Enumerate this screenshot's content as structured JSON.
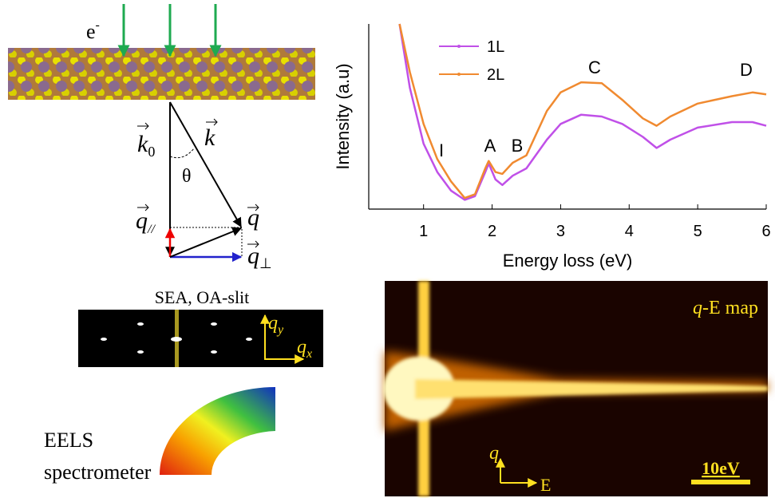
{
  "chart_data": {
    "type": "line",
    "xlabel": "Energy loss (eV)",
    "ylabel": "Intensity (a.u)",
    "x": [
      0.65,
      0.8,
      1.0,
      1.2,
      1.4,
      1.6,
      1.75,
      1.9,
      1.95,
      2.05,
      2.15,
      2.3,
      2.5,
      2.8,
      3.0,
      3.3,
      3.6,
      3.9,
      4.2,
      4.4,
      4.6,
      5.0,
      5.5,
      5.8,
      6.0
    ],
    "series": [
      {
        "name": "1L",
        "color": "#c050e8",
        "values": [
          1.0,
          0.655,
          0.353,
          0.2,
          0.1,
          0.05,
          0.07,
          0.2,
          0.246,
          0.16,
          0.13,
          0.18,
          0.22,
          0.375,
          0.46,
          0.51,
          0.5,
          0.46,
          0.39,
          0.33,
          0.375,
          0.44,
          0.47,
          0.47,
          0.45
        ]
      },
      {
        "name": "2L",
        "color": "#f08a30",
        "values": [
          1.0,
          0.74,
          0.46,
          0.27,
          0.15,
          0.06,
          0.08,
          0.22,
          0.26,
          0.2,
          0.19,
          0.25,
          0.29,
          0.53,
          0.63,
          0.685,
          0.68,
          0.59,
          0.49,
          0.45,
          0.5,
          0.57,
          0.61,
          0.63,
          0.62
        ]
      }
    ],
    "xlim": [
      0.2,
      6
    ],
    "xticks": [
      1,
      2,
      3,
      4,
      5,
      6
    ],
    "ylim": [
      0,
      1
    ],
    "annotations": [
      "I",
      "A",
      "B",
      "C",
      "D"
    ],
    "legend": "upper left"
  },
  "diagram": {
    "electron": {
      "symbol": "e",
      "superscript": "-"
    },
    "k0": {
      "symbol": "k",
      "subscript": "0"
    },
    "k": "k",
    "theta": "θ",
    "q_par": {
      "symbol": "q",
      "subscript": "//"
    },
    "q": "q",
    "q_perp": {
      "symbol": "q",
      "subscript": "⊥"
    },
    "detector_title": "SEA, OA-slit",
    "qy": {
      "symbol": "q",
      "subscript": "y"
    },
    "qx": {
      "symbol": "q",
      "subscript": "x"
    },
    "spectrometer": [
      "EELS",
      "spectrometer"
    ]
  },
  "map": {
    "title": {
      "symbol": "q",
      "text": "-E map"
    },
    "axis_q": "q",
    "axis_E": "E",
    "scale_bar": "10eV"
  }
}
